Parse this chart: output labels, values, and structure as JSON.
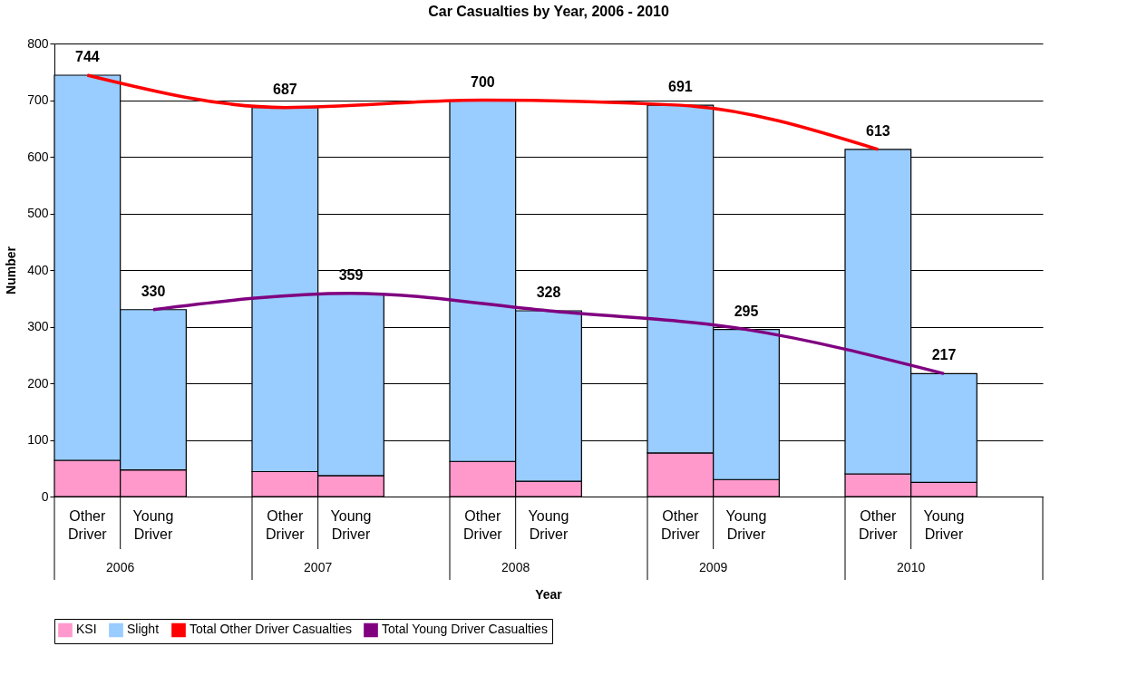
{
  "chart_data": {
    "type": "bar",
    "title": "Car Casualties by Year, 2006 - 2010",
    "xlabel": "Year",
    "ylabel": "Number",
    "categories": [
      "Other Driver",
      "Young Driver",
      "Other Driver",
      "Young Driver",
      "Other Driver",
      "Young Driver",
      "Other Driver",
      "Young Driver",
      "Other Driver",
      "Young Driver"
    ],
    "annotations": [
      "2006",
      "2007",
      "2008",
      "2009",
      "2010"
    ],
    "stacked": true,
    "series": [
      {
        "name": "KSI",
        "color": "#ff99cc",
        "values": [
          64,
          47,
          44,
          37,
          62,
          27,
          77,
          30,
          40,
          25
        ]
      },
      {
        "name": "Slight",
        "color": "#99ccff",
        "values": [
          680,
          283,
          643,
          322,
          638,
          301,
          614,
          265,
          573,
          192
        ]
      },
      {
        "name": "Total Other Driver Casualties",
        "type": "line",
        "color": "#ff0000",
        "values": [
          744,
          null,
          687,
          null,
          700,
          null,
          691,
          null,
          613,
          null
        ],
        "value_labels": [
          "744",
          null,
          "687",
          null,
          "700",
          null,
          "691",
          null,
          "613",
          null
        ]
      },
      {
        "name": "Total Young Driver Casualties",
        "type": "line",
        "color": "#800080",
        "values": [
          null,
          330,
          null,
          359,
          null,
          328,
          null,
          295,
          null,
          217
        ],
        "value_labels": [
          null,
          "330",
          null,
          "359",
          null,
          "328",
          null,
          "295",
          null,
          "217"
        ]
      }
    ],
    "ylim": [
      0,
      800
    ],
    "yticks": [
      0,
      100,
      200,
      300,
      400,
      500,
      600,
      700,
      800
    ],
    "grid": "y",
    "legend": "bottom"
  }
}
